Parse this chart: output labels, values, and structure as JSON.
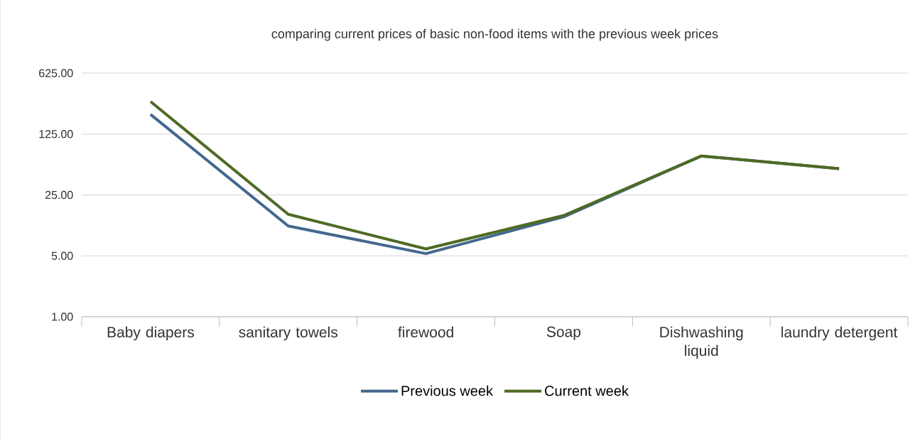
{
  "chart_data": {
    "type": "line",
    "title": "comparing current prices of basic non-food items with the previous week prices",
    "categories": [
      "Baby diapers",
      "sanitary towels",
      "firewood",
      "Soap",
      "Dishwashing liquid",
      "laundry detergent"
    ],
    "series": [
      {
        "name": "Previous week",
        "color": "#43688f",
        "values": [
          210,
          11,
          5.3,
          14,
          70,
          50
        ]
      },
      {
        "name": "Current week",
        "color": "#4f6a24",
        "values": [
          295,
          15,
          6,
          14.5,
          70,
          50
        ]
      }
    ],
    "ylim": [
      1,
      625
    ],
    "yticks": [
      {
        "value": 1,
        "label": "1.00"
      },
      {
        "value": 5,
        "label": "5.00"
      },
      {
        "value": 25,
        "label": "25.00"
      },
      {
        "value": 125,
        "label": "125.00"
      },
      {
        "value": 625,
        "label": "625.00"
      }
    ],
    "log": "y",
    "grid": "y",
    "legend": "bottom"
  }
}
